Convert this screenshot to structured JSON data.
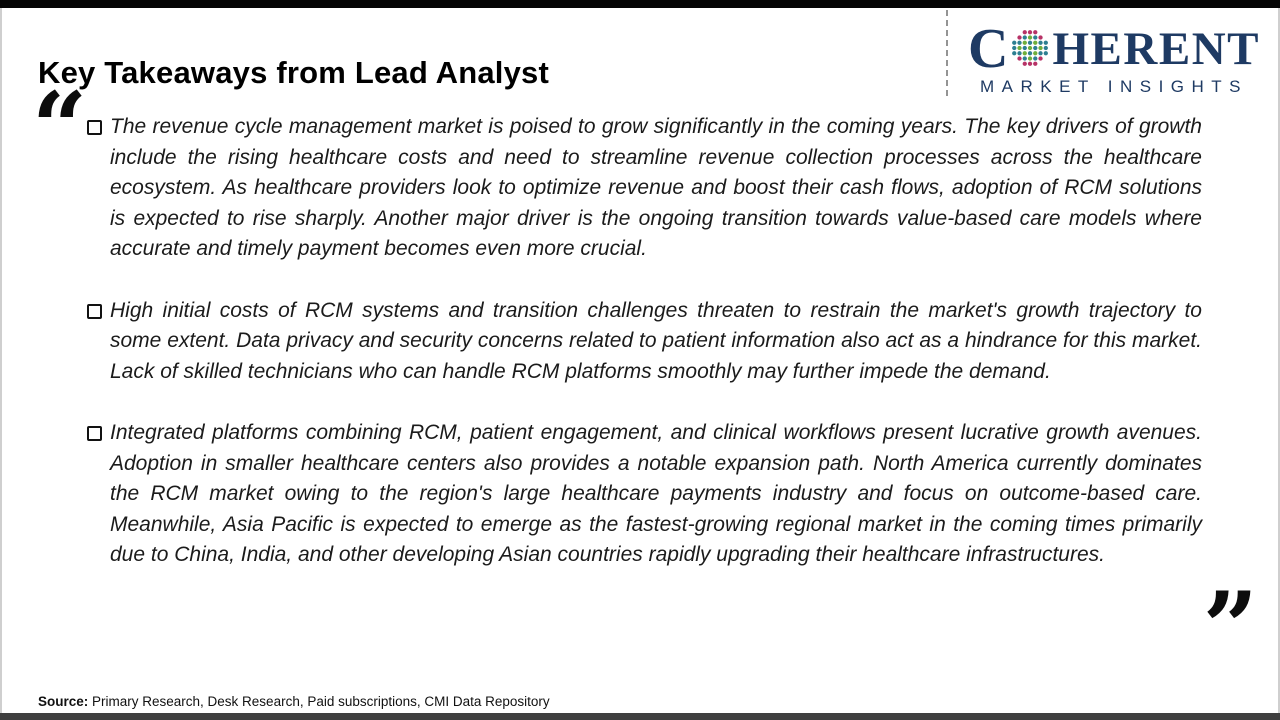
{
  "header": {
    "title": "Key Takeaways from Lead Analyst"
  },
  "logo": {
    "name_first_letter": "C",
    "name_rest": "HERENT",
    "subtitle": "MARKET INSIGHTS",
    "colors": {
      "navy": "#1e3a63",
      "magenta": "#b73266",
      "teal": "#2d7f91",
      "green": "#6fae3b"
    }
  },
  "quotes": {
    "open": "“",
    "close": "”"
  },
  "takeaways": [
    {
      "text": "The revenue cycle management market is poised to grow significantly in the coming years. The key drivers of growth include the rising healthcare costs and need to streamline revenue collection processes across the healthcare ecosystem. As healthcare providers look to optimize revenue and boost their cash flows, adoption of RCM solutions is expected to rise sharply. Another major driver is the ongoing transition towards value-based care models where accurate and timely payment becomes even more crucial."
    },
    {
      "text": "High initial costs of RCM systems and transition challenges threaten to restrain the market's growth trajectory to some extent. Data privacy and security concerns related to patient information also act as a hindrance for this market. Lack of skilled technicians who can handle RCM platforms smoothly may further impede the demand."
    },
    {
      "text": "Integrated platforms combining RCM, patient engagement, and clinical workflows present lucrative growth avenues. Adoption in smaller healthcare centers also provides a notable expansion path. North America currently dominates the RCM market owing to the region's large healthcare payments industry and focus on outcome-based care. Meanwhile, Asia Pacific is expected to emerge as the fastest-growing regional market in the coming times primarily due to China, India, and other developing Asian countries rapidly upgrading their healthcare infrastructures."
    }
  ],
  "source": {
    "label": "Source:",
    "text": " Primary Research, Desk Research, Paid subscriptions, CMI Data Repository"
  }
}
